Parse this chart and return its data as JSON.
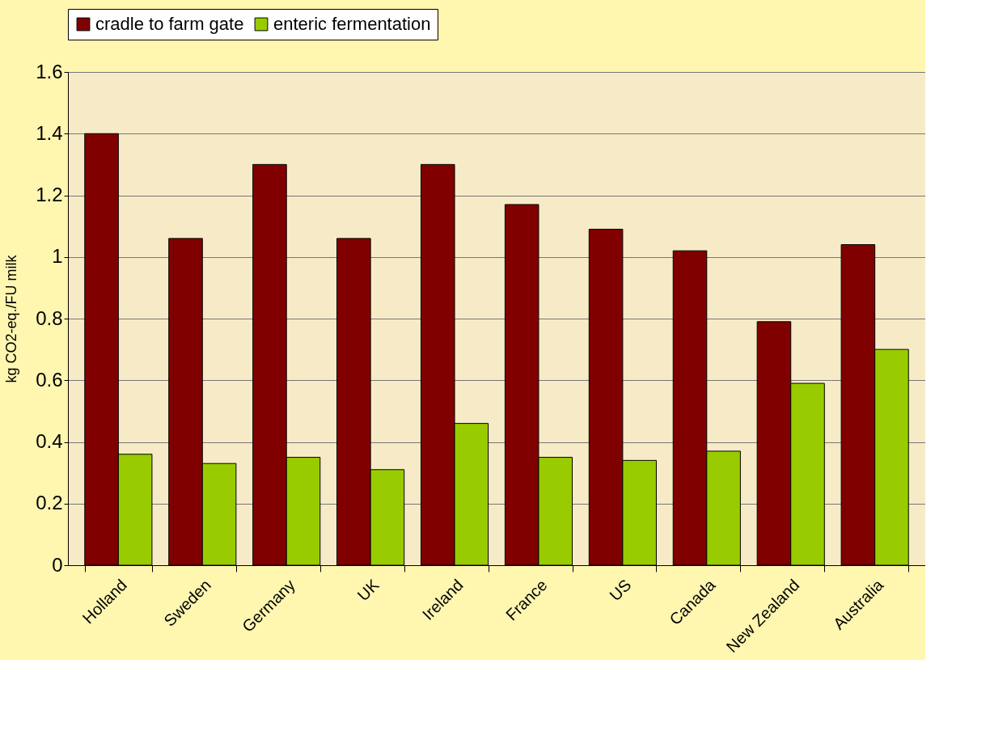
{
  "chart_data": {
    "type": "bar",
    "ylabel": "kg CO2-eq./FU milk",
    "categories": [
      "Holland",
      "Sweden",
      "Germany",
      "UK",
      "Ireland",
      "France",
      "US",
      "Canada",
      "New Zealand",
      "Australia"
    ],
    "series": [
      {
        "name": "cradle to farm gate",
        "color": "#800000",
        "values": [
          1.4,
          1.06,
          1.3,
          1.06,
          1.3,
          1.17,
          1.09,
          1.02,
          0.79,
          1.04
        ]
      },
      {
        "name": "enteric fermentation",
        "color": "#99cc00",
        "values": [
          0.36,
          0.33,
          0.35,
          0.31,
          0.46,
          0.35,
          0.34,
          0.37,
          0.59,
          0.7
        ]
      }
    ],
    "ylim": [
      0,
      1.6
    ],
    "yticks": [
      0,
      0.2,
      0.4,
      0.6,
      0.8,
      1,
      1.2,
      1.4,
      1.6
    ],
    "grid": "y",
    "legend": "top"
  }
}
